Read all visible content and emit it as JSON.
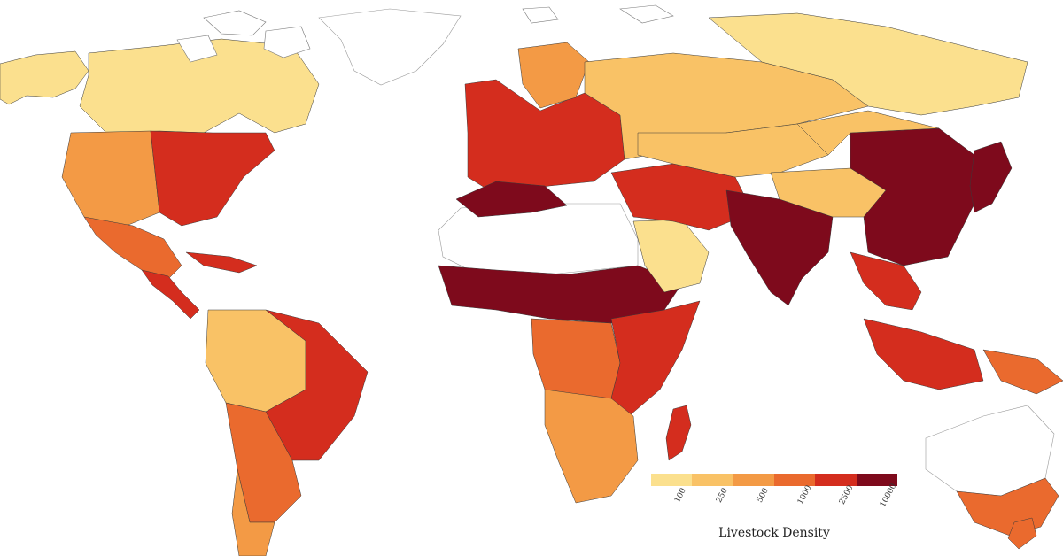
{
  "map": {
    "projection": "equirectangular",
    "water_color": "#ffffff",
    "border_color": "#3a3a3a",
    "no_data_color": "#ffffff"
  },
  "legend": {
    "title": "Livestock Density",
    "bins": [
      {
        "label": "100",
        "color": "#fbe08e"
      },
      {
        "label": "250",
        "color": "#f9c266"
      },
      {
        "label": "500",
        "color": "#f39a45"
      },
      {
        "label": "1000",
        "color": "#ea6a2e"
      },
      {
        "label": "2500",
        "color": "#d42d1e"
      },
      {
        "label": "10000",
        "color": "#7e0a1c"
      }
    ]
  },
  "regions": [
    {
      "name": "Alaska",
      "level": 0
    },
    {
      "name": "Canada",
      "level": 0
    },
    {
      "name": "Greenland",
      "level": -1
    },
    {
      "name": "Western United States",
      "level": 2
    },
    {
      "name": "Eastern United States",
      "level": 4
    },
    {
      "name": "Mexico",
      "level": 3
    },
    {
      "name": "Central America",
      "level": 4
    },
    {
      "name": "Caribbean",
      "level": 4
    },
    {
      "name": "Amazon Basin",
      "level": 1
    },
    {
      "name": "Eastern Brazil",
      "level": 4
    },
    {
      "name": "Argentina",
      "level": 3
    },
    {
      "name": "Patagonia",
      "level": 2
    },
    {
      "name": "Western Europe",
      "level": 4
    },
    {
      "name": "Scandinavia",
      "level": 2
    },
    {
      "name": "Russia",
      "level": 1
    },
    {
      "name": "Siberia",
      "level": 0
    },
    {
      "name": "Sahara",
      "level": -1
    },
    {
      "name": "Maghreb",
      "level": 5
    },
    {
      "name": "Sahel",
      "level": 5
    },
    {
      "name": "Central Africa",
      "level": 3
    },
    {
      "name": "East Africa",
      "level": 4
    },
    {
      "name": "Southern Africa",
      "level": 2
    },
    {
      "name": "Madagascar",
      "level": 4
    },
    {
      "name": "Arabian Peninsula",
      "level": 0
    },
    {
      "name": "Middle East",
      "level": 4
    },
    {
      "name": "Central Asia",
      "level": 1
    },
    {
      "name": "India",
      "level": 5
    },
    {
      "name": "Tibet",
      "level": 1
    },
    {
      "name": "China",
      "level": 5
    },
    {
      "name": "Mongolia",
      "level": 1
    },
    {
      "name": "Japan",
      "level": 5
    },
    {
      "name": "Southeast Asia",
      "level": 4
    },
    {
      "name": "Indonesia",
      "level": 4
    },
    {
      "name": "Papua New Guinea",
      "level": 3
    },
    {
      "name": "Australia Interior",
      "level": -1
    },
    {
      "name": "Australia Southeast",
      "level": 3
    },
    {
      "name": "New Zealand",
      "level": 3
    }
  ]
}
